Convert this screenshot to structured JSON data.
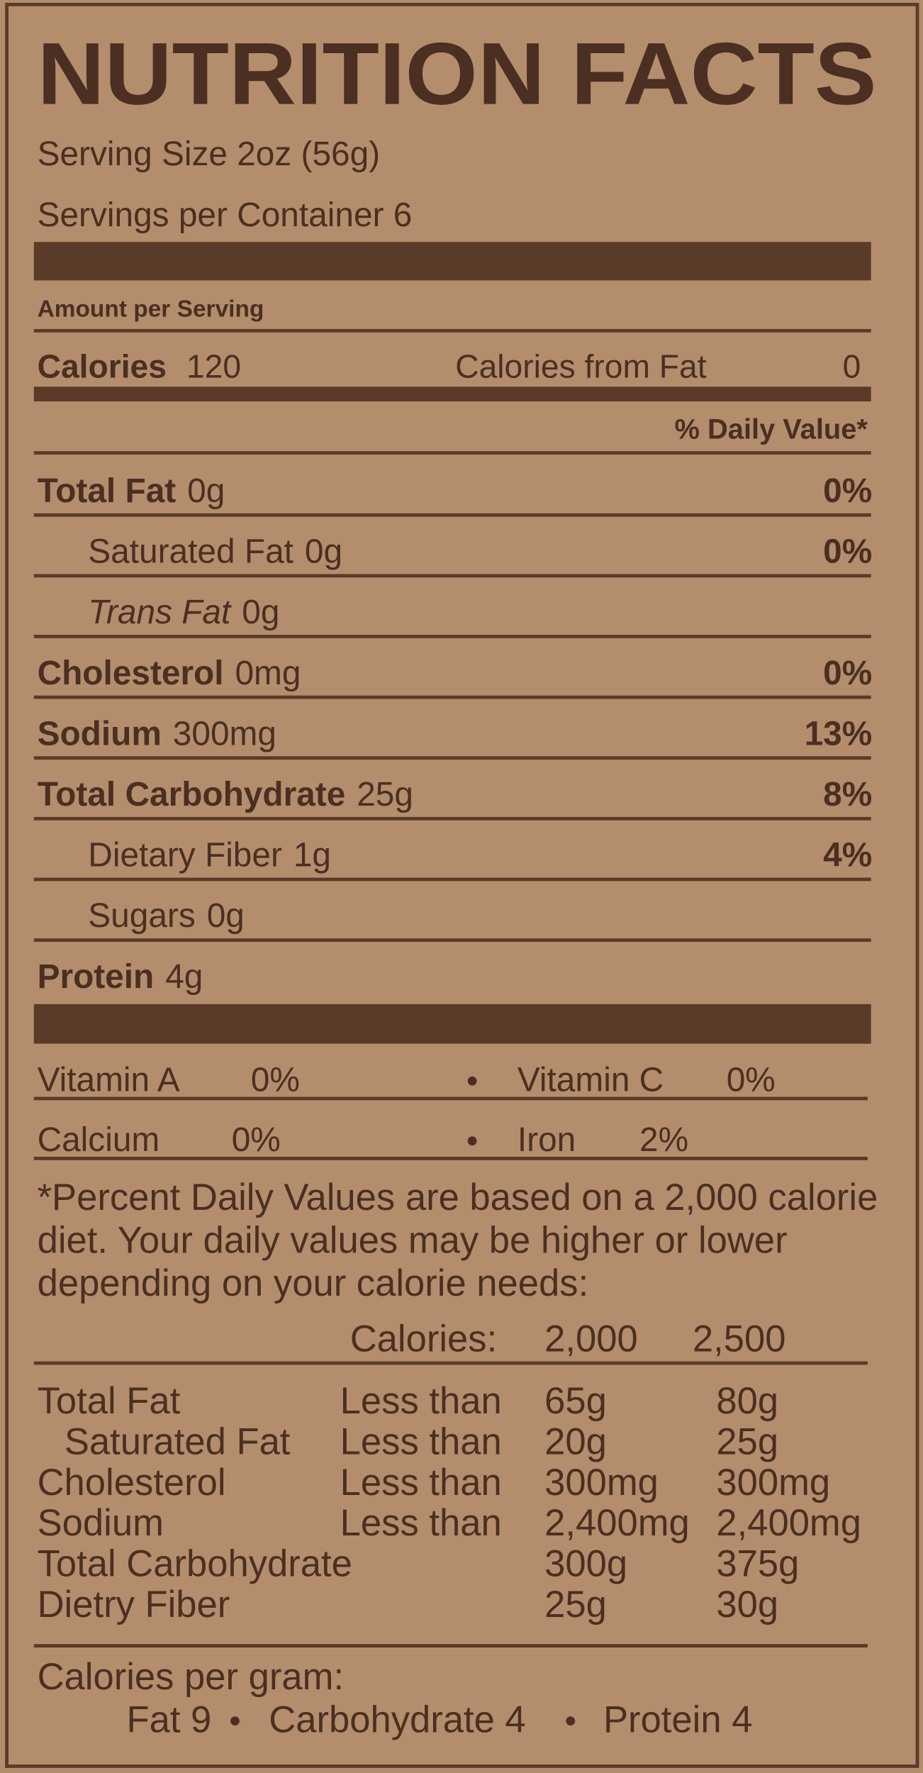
{
  "title": "NUTRITION FACTS",
  "serving_size": "Serving Size 2oz (56g)",
  "servings_per_container": "Servings per Container 6",
  "amount_per_serving": "Amount per Serving",
  "calories": {
    "label": "Calories",
    "value": "120",
    "from_fat_label": "Calories from Fat",
    "from_fat_value": "0"
  },
  "daily_value_header": "% Daily Value*",
  "nutrients": [
    {
      "name": "Total Fat",
      "amount": "0g",
      "dv": "0%",
      "bold": true,
      "indent": false
    },
    {
      "name": "Saturated Fat",
      "amount": "0g",
      "dv": "0%",
      "bold": false,
      "indent": true
    },
    {
      "name": "Trans Fat",
      "amount": "0g",
      "dv": null,
      "bold": false,
      "indent": true
    },
    {
      "name": "Cholesterol",
      "amount": "0mg",
      "dv": "0%",
      "bold": true,
      "indent": false
    },
    {
      "name": "Sodium",
      "amount": "300mg",
      "dv": "13%",
      "bold": true,
      "indent": false
    },
    {
      "name": "Total Carbohydrate",
      "amount": "25g",
      "dv": "8%",
      "bold": true,
      "indent": false
    },
    {
      "name": "Dietary Fiber",
      "amount": "1g",
      "dv": "4%",
      "bold": false,
      "indent": true
    },
    {
      "name": "Sugars",
      "amount": "0g",
      "dv": null,
      "bold": false,
      "indent": true
    },
    {
      "name": "Protein",
      "amount": "4g",
      "dv": null,
      "bold": true,
      "indent": false
    }
  ],
  "vitamins": [
    {
      "name": "Vitamin A",
      "value": "0%"
    },
    {
      "name": "Vitamin C",
      "value": "0%"
    },
    {
      "name": "Calcium",
      "value": "0%"
    },
    {
      "name": "Iron",
      "value": "2%"
    }
  ],
  "footnote": [
    "*Percent Daily Values are based on a 2,000 calorie",
    "diet. Your daily values may be higher or lower",
    "depending on your calorie needs:"
  ],
  "reference": {
    "header": [
      "Calories:",
      "2,000",
      "2,500"
    ],
    "rows": [
      {
        "nutrient": "Total Fat",
        "qualifier": "Less than",
        "low": "65g",
        "high": "80g",
        "indent": false
      },
      {
        "nutrient": "Saturated Fat",
        "qualifier": "Less than",
        "low": "20g",
        "high": "25g",
        "indent": true
      },
      {
        "nutrient": "Cholesterol",
        "qualifier": "Less than",
        "low": "300mg",
        "high": "300mg",
        "indent": false
      },
      {
        "nutrient": "Sodium",
        "qualifier": "Less than",
        "low": "2,400mg",
        "high": "2,400mg",
        "indent": false
      },
      {
        "nutrient": "Total Carbohydrate",
        "qualifier": null,
        "low": "300g",
        "high": "375g",
        "indent": false
      },
      {
        "nutrient": "Dietry Fiber",
        "qualifier": null,
        "low": "25g",
        "high": "30g",
        "indent": false
      }
    ]
  },
  "calories_per_gram": {
    "label": "Calories per gram:",
    "items": [
      "Fat 9",
      "Carbohydrate 4",
      "Protein 4"
    ]
  }
}
